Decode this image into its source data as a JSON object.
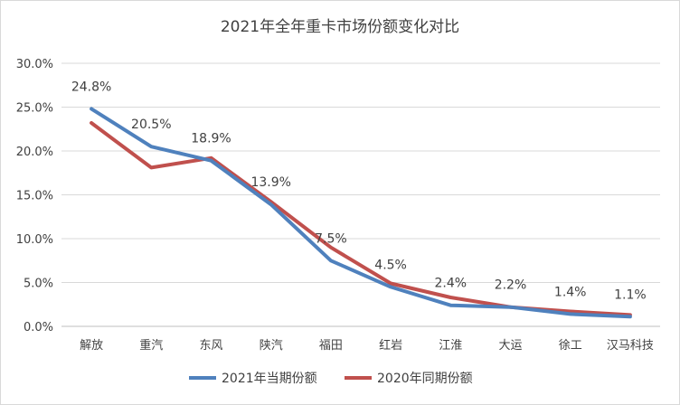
{
  "chart_data": {
    "type": "line",
    "title": "2021年全年重卡市场份额变化对比",
    "categories": [
      "解放",
      "重汽",
      "东风",
      "陕汽",
      "福田",
      "红岩",
      "江淮",
      "大运",
      "徐工",
      "汉马科技"
    ],
    "ylim": [
      0,
      30
    ],
    "yticks": [
      "0.0%",
      "5.0%",
      "10.0%",
      "15.0%",
      "20.0%",
      "25.0%",
      "30.0%"
    ],
    "grid": true,
    "legend_position": "bottom",
    "series": [
      {
        "name": "2021年当期份额",
        "color": "#4f81bd",
        "values": [
          24.8,
          20.5,
          18.9,
          13.9,
          7.5,
          4.5,
          2.4,
          2.2,
          1.4,
          1.1
        ],
        "labels": [
          "24.8%",
          "20.5%",
          "18.9%",
          "13.9%",
          "7.5%",
          "4.5%",
          "2.4%",
          "2.2%",
          "1.4%",
          "1.1%"
        ]
      },
      {
        "name": "2020年同期份额",
        "color": "#c0504d",
        "values": [
          23.2,
          18.1,
          19.2,
          14.2,
          9.0,
          4.9,
          3.3,
          2.2,
          1.7,
          1.3
        ]
      }
    ]
  }
}
